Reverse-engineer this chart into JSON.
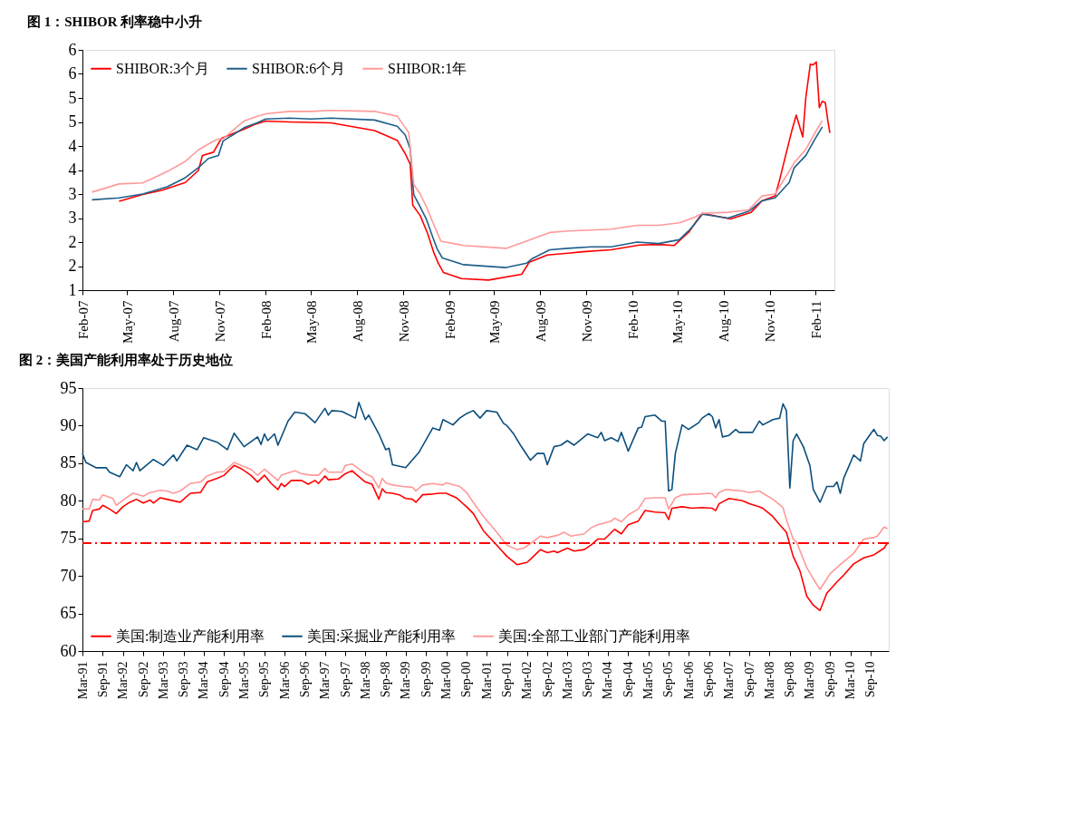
{
  "chart_data": [
    {
      "type": "line",
      "title": "图 1：SHIBOR 利率稳中小升",
      "legend": "top left",
      "grid": false,
      "xlim": [
        "2007-02-01",
        "2011-03-10"
      ],
      "xticks": [
        {
          "value": "2007-02-01",
          "label": "Feb-07"
        },
        {
          "value": "2007-05-01",
          "label": "May-07"
        },
        {
          "value": "2007-08-01",
          "label": "Aug-07"
        },
        {
          "value": "2007-11-01",
          "label": "Nov-07"
        },
        {
          "value": "2008-02-01",
          "label": "Feb-08"
        },
        {
          "value": "2008-05-01",
          "label": "May-08"
        },
        {
          "value": "2008-08-01",
          "label": "Aug-08"
        },
        {
          "value": "2008-11-01",
          "label": "Nov-08"
        },
        {
          "value": "2009-02-01",
          "label": "Feb-09"
        },
        {
          "value": "2009-05-01",
          "label": "May-09"
        },
        {
          "value": "2009-08-01",
          "label": "Aug-09"
        },
        {
          "value": "2009-11-01",
          "label": "Nov-09"
        },
        {
          "value": "2010-02-01",
          "label": "Feb-10"
        },
        {
          "value": "2010-05-01",
          "label": "May-10"
        },
        {
          "value": "2010-08-01",
          "label": "Aug-10"
        },
        {
          "value": "2010-11-01",
          "label": "Nov-10"
        },
        {
          "value": "2011-02-01",
          "label": "Feb-11"
        }
      ],
      "ylim": [
        1,
        6
      ],
      "yticks": [
        1,
        {
          "value": 1.5,
          "label": "2"
        },
        2,
        {
          "value": 2.5,
          "label": "3"
        },
        3,
        {
          "value": 3.5,
          "label": "4"
        },
        4,
        {
          "value": 4.5,
          "label": "5"
        },
        5,
        {
          "value": 5.5,
          "label": "6"
        },
        6
      ],
      "series": [
        {
          "name": "SHIBOR:3个月",
          "color": "#ff0000",
          "x": [
            "2007-04-15",
            "2007-06-01",
            "2007-07-10",
            "2007-08-25",
            "2007-09-20",
            "2007-09-28",
            "2007-10-20",
            "2007-11-05",
            "2007-12-20",
            "2008-01-10",
            "2008-02-01",
            "2008-03-20",
            "2008-05-01",
            "2008-06-10",
            "2008-09-05",
            "2008-10-20",
            "2008-11-05",
            "2008-11-15",
            "2008-11-20",
            "2008-12-05",
            "2008-12-20",
            "2009-01-01",
            "2009-01-10",
            "2009-01-20",
            "2009-02-25",
            "2009-04-20",
            "2009-06-25",
            "2009-07-10",
            "2009-08-15",
            "2009-09-25",
            "2009-10-25",
            "2009-12-20",
            "2010-02-15",
            "2010-03-25",
            "2010-04-25",
            "2010-05-25",
            "2010-06-05",
            "2010-06-20",
            "2010-08-15",
            "2010-09-25",
            "2010-10-17",
            "2010-11-12",
            "2010-11-21",
            "2010-12-03",
            "2010-12-15",
            "2010-12-24",
            "2011-01-06",
            "2011-01-12",
            "2011-01-21",
            "2011-01-27",
            "2011-02-02",
            "2011-02-08",
            "2011-02-14",
            "2011-02-20",
            "2011-02-25",
            "2011-03-01"
          ],
          "values": [
            2.85,
            2.99,
            3.08,
            3.24,
            3.49,
            3.8,
            3.87,
            4.16,
            4.35,
            4.45,
            4.52,
            4.5,
            4.49,
            4.48,
            4.32,
            4.12,
            3.84,
            3.62,
            2.77,
            2.55,
            2.17,
            1.78,
            1.56,
            1.37,
            1.24,
            1.21,
            1.33,
            1.58,
            1.73,
            1.77,
            1.8,
            1.84,
            1.94,
            1.95,
            1.93,
            2.22,
            2.39,
            2.6,
            2.48,
            2.62,
            2.86,
            2.96,
            3.3,
            3.81,
            4.31,
            4.64,
            4.19,
            5.0,
            5.7,
            5.69,
            5.75,
            4.8,
            4.93,
            4.9,
            4.52,
            4.27
          ]
        },
        {
          "name": "SHIBOR:6个月",
          "color": "#1f5f8b",
          "x": [
            "2007-02-20",
            "2007-04-15",
            "2007-06-01",
            "2007-07-20",
            "2007-08-25",
            "2007-09-20",
            "2007-10-10",
            "2007-10-30",
            "2007-11-08",
            "2007-12-20",
            "2008-01-15",
            "2008-02-01",
            "2008-03-20",
            "2008-05-01",
            "2008-06-10",
            "2008-09-05",
            "2008-10-20",
            "2008-11-05",
            "2008-11-15",
            "2008-11-22",
            "2008-12-05",
            "2008-12-17",
            "2008-12-30",
            "2009-01-08",
            "2009-01-18",
            "2009-03-01",
            "2009-05-25",
            "2009-07-05",
            "2009-07-15",
            "2009-08-20",
            "2009-09-25",
            "2009-11-10",
            "2009-12-20",
            "2010-02-10",
            "2010-03-25",
            "2010-05-05",
            "2010-05-25",
            "2010-06-05",
            "2010-06-20",
            "2010-08-10",
            "2010-09-20",
            "2010-10-17",
            "2010-11-12",
            "2010-12-10",
            "2010-12-20",
            "2011-01-12",
            "2011-01-29",
            "2011-02-14"
          ],
          "values": [
            2.88,
            2.92,
            3.0,
            3.15,
            3.34,
            3.55,
            3.74,
            3.8,
            4.1,
            4.38,
            4.48,
            4.56,
            4.58,
            4.56,
            4.58,
            4.54,
            4.41,
            4.23,
            3.94,
            2.99,
            2.73,
            2.48,
            2.1,
            1.85,
            1.67,
            1.53,
            1.47,
            1.56,
            1.65,
            1.84,
            1.87,
            1.9,
            1.9,
            2.0,
            1.97,
            2.05,
            2.25,
            2.38,
            2.58,
            2.5,
            2.64,
            2.86,
            2.92,
            3.24,
            3.55,
            3.8,
            4.12,
            4.4
          ]
        },
        {
          "name": "SHIBOR:1年",
          "color": "#ff9999",
          "x": [
            "2007-02-20",
            "2007-04-15",
            "2007-06-01",
            "2007-06-20",
            "2007-07-20",
            "2007-08-25",
            "2007-09-20",
            "2007-10-15",
            "2007-10-28",
            "2007-11-08",
            "2007-12-20",
            "2008-01-10",
            "2008-02-01",
            "2008-03-20",
            "2008-05-01",
            "2008-06-10",
            "2008-09-05",
            "2008-10-20",
            "2008-11-12",
            "2008-11-22",
            "2008-12-05",
            "2008-12-17",
            "2008-12-30",
            "2009-01-15",
            "2009-03-01",
            "2009-05-25",
            "2009-08-20",
            "2009-09-25",
            "2009-11-10",
            "2009-12-20",
            "2010-02-10",
            "2010-03-25",
            "2010-05-05",
            "2010-06-05",
            "2010-06-20",
            "2010-08-10",
            "2010-09-20",
            "2010-10-17",
            "2010-11-12",
            "2010-12-20",
            "2011-01-12",
            "2011-01-29",
            "2011-02-14"
          ],
          "values": [
            3.04,
            3.21,
            3.23,
            3.32,
            3.47,
            3.68,
            3.92,
            4.07,
            4.14,
            4.15,
            4.52,
            4.6,
            4.67,
            4.72,
            4.72,
            4.74,
            4.72,
            4.62,
            4.28,
            3.2,
            3.0,
            2.74,
            2.41,
            2.02,
            1.93,
            1.87,
            2.2,
            2.23,
            2.25,
            2.27,
            2.35,
            2.35,
            2.4,
            2.52,
            2.6,
            2.62,
            2.67,
            2.96,
            3.0,
            3.65,
            3.93,
            4.25,
            4.53
          ]
        }
      ]
    },
    {
      "type": "line",
      "title": "图 2：美国产能利用率处于历史地位",
      "legend": "bottom",
      "grid": false,
      "xlim": [
        "1991-03-01",
        "2011-02-12"
      ],
      "xticks": [
        {
          "value": "1991-03",
          "label": "Mar-91"
        },
        {
          "value": "1991-09",
          "label": "Sep-91"
        },
        {
          "value": "1992-03",
          "label": "Mar-92"
        },
        {
          "value": "1992-09",
          "label": "Sep-92"
        },
        {
          "value": "1993-03",
          "label": "Mar-93"
        },
        {
          "value": "1993-09",
          "label": "Sep-93"
        },
        {
          "value": "1994-03",
          "label": "Mar-94"
        },
        {
          "value": "1994-09",
          "label": "Sep-94"
        },
        {
          "value": "1995-03",
          "label": "Mar-95"
        },
        {
          "value": "1995-09",
          "label": "Sep-95"
        },
        {
          "value": "1996-03",
          "label": "Mar-96"
        },
        {
          "value": "1996-09",
          "label": "Sep-96"
        },
        {
          "value": "1997-03",
          "label": "Mar-97"
        },
        {
          "value": "1997-09",
          "label": "Sep-97"
        },
        {
          "value": "1998-03",
          "label": "Mar-98"
        },
        {
          "value": "1998-09",
          "label": "Sep-98"
        },
        {
          "value": "1999-03",
          "label": "Mar-99"
        },
        {
          "value": "1999-09",
          "label": "Sep-99"
        },
        {
          "value": "2000-03",
          "label": "Mar-00"
        },
        {
          "value": "2000-09",
          "label": "Sep-00"
        },
        {
          "value": "2001-03",
          "label": "Mar-01"
        },
        {
          "value": "2001-09",
          "label": "Sep-01"
        },
        {
          "value": "2002-03",
          "label": "Mar-02"
        },
        {
          "value": "2002-09",
          "label": "Sep-02"
        },
        {
          "value": "2003-03",
          "label": "Mar-03"
        },
        {
          "value": "2003-09",
          "label": "Sep-03"
        },
        {
          "value": "2004-03",
          "label": "Mar-04"
        },
        {
          "value": "2004-09",
          "label": "Sep-04"
        },
        {
          "value": "2005-03",
          "label": "Mar-05"
        },
        {
          "value": "2005-09",
          "label": "Sep-05"
        },
        {
          "value": "2006-03",
          "label": "Mar-06"
        },
        {
          "value": "2006-09",
          "label": "Sep-06"
        },
        {
          "value": "2007-03",
          "label": "Mar-07"
        },
        {
          "value": "2007-09",
          "label": "Sep-07"
        },
        {
          "value": "2008-03",
          "label": "Mar-08"
        },
        {
          "value": "2008-09",
          "label": "Sep-08"
        },
        {
          "value": "2009-03",
          "label": "Mar-09"
        },
        {
          "value": "2009-09",
          "label": "Sep-09"
        },
        {
          "value": "2010-03",
          "label": "Mar-10"
        },
        {
          "value": "2010-09",
          "label": "Sep-10"
        }
      ],
      "ylim": [
        60,
        95
      ],
      "yticks": [
        60,
        65,
        70,
        75,
        80,
        85,
        90,
        95
      ],
      "ref_lines": [
        {
          "axis": "y",
          "value": 74.4,
          "color": "#ff0000",
          "line_style": "dashed"
        }
      ],
      "series": [
        {
          "name": "美国:制造业产能利用率",
          "color": "#ff0000",
          "x": [
            "1991-03",
            "1991-05",
            "1991-06",
            "1991-08",
            "1991-09",
            "1991-11",
            "1992-01",
            "1992-03",
            "1992-05",
            "1992-07",
            "1992-09",
            "1992-11",
            "1992-12",
            "1993-02",
            "1993-04",
            "1993-07",
            "1993-08",
            "1993-11",
            "1994-02",
            "1994-04",
            "1994-07",
            "1994-09",
            "1994-12",
            "1995-02",
            "1995-05",
            "1995-07",
            "1995-09",
            "1995-11",
            "1996-01",
            "1996-02",
            "1996-03",
            "1996-05",
            "1996-08",
            "1996-10",
            "1996-12",
            "1997-01",
            "1997-03",
            "1997-04",
            "1997-07",
            "1997-09",
            "1997-11",
            "1997-12",
            "1998-03",
            "1998-05",
            "1998-07",
            "1998-08",
            "1998-09",
            "1998-11",
            "1999-01",
            "1999-03",
            "1999-05",
            "1999-06",
            "1999-08",
            "1999-11",
            "2000-01",
            "2000-03",
            "2000-06",
            "2000-09",
            "2000-11",
            "2001-02",
            "2001-06",
            "2001-09",
            "2001-12",
            "2002-03",
            "2002-04",
            "2002-07",
            "2002-09",
            "2002-11",
            "2002-12",
            "2003-03",
            "2003-05",
            "2003-08",
            "2003-10",
            "2003-12",
            "2004-02",
            "2004-05",
            "2004-07",
            "2004-09",
            "2004-12",
            "2005-02",
            "2005-05",
            "2005-08",
            "2005-09",
            "2005-10",
            "2006-01",
            "2006-04",
            "2006-07",
            "2006-10",
            "2006-11",
            "2006-12",
            "2007-03",
            "2007-07",
            "2007-09",
            "2007-12",
            "2008-01",
            "2008-04",
            "2008-06",
            "2008-08",
            "2008-10",
            "2008-12",
            "2009-02",
            "2009-04",
            "2009-06",
            "2009-08",
            "2009-11",
            "2010-01",
            "2010-04",
            "2010-07",
            "2010-10",
            "2011-01",
            "2011-02"
          ],
          "values": [
            77.2,
            77.3,
            78.7,
            78.9,
            79.4,
            78.9,
            78.3,
            79.2,
            79.8,
            80.2,
            79.7,
            80.1,
            79.7,
            80.4,
            80.2,
            79.9,
            79.8,
            81.0,
            81.1,
            82.5,
            83.0,
            83.4,
            84.7,
            84.3,
            83.4,
            82.5,
            83.4,
            82.3,
            81.5,
            82.3,
            81.9,
            82.7,
            82.7,
            82.2,
            82.7,
            82.3,
            83.3,
            82.8,
            82.9,
            83.6,
            84.0,
            83.6,
            82.5,
            82.2,
            80.2,
            81.6,
            81.1,
            81.0,
            80.8,
            80.3,
            80.2,
            79.8,
            80.8,
            80.9,
            81.0,
            81.0,
            80.4,
            79.2,
            78.3,
            76.0,
            74.1,
            72.6,
            71.5,
            71.8,
            72.2,
            73.5,
            73.1,
            73.3,
            73.1,
            73.7,
            73.3,
            73.5,
            74.1,
            74.9,
            74.9,
            76.2,
            75.6,
            76.8,
            77.3,
            78.7,
            78.5,
            78.4,
            77.5,
            79.0,
            79.2,
            79.0,
            79.1,
            79.0,
            78.7,
            79.6,
            80.3,
            80.0,
            79.6,
            79.2,
            79.0,
            77.9,
            76.8,
            75.8,
            72.6,
            70.7,
            67.3,
            66.1,
            65.4,
            67.7,
            69.2,
            70.1,
            71.6,
            72.4,
            72.8,
            73.7,
            74.4
          ]
        },
        {
          "name": "美国:采掘业产能利用率",
          "color": "#0b4f7c",
          "x": [
            "1991-03",
            "1991-04",
            "1991-07",
            "1991-10",
            "1991-11",
            "1992-02",
            "1992-04",
            "1992-06",
            "1992-07",
            "1992-08",
            "1992-12",
            "1993-03",
            "1993-06",
            "1993-07",
            "1993-10",
            "1994-01",
            "1994-03",
            "1994-07",
            "1994-10",
            "1994-12",
            "1995-03",
            "1995-07",
            "1995-08",
            "1995-09",
            "1995-10",
            "1995-12",
            "1996-01",
            "1996-04",
            "1996-06",
            "1996-09",
            "1996-12",
            "1997-03",
            "1997-04",
            "1997-05",
            "1997-08",
            "1997-12",
            "1998-01",
            "1998-03",
            "1998-04",
            "1998-07",
            "1998-09",
            "1998-10",
            "1998-11",
            "1999-03",
            "1999-07",
            "1999-11",
            "2000-01",
            "2000-02",
            "2000-05",
            "2000-07",
            "2000-09",
            "2000-11",
            "2001-01",
            "2001-03",
            "2001-06",
            "2001-08",
            "2001-09",
            "2001-11",
            "2002-01",
            "2002-04",
            "2002-06",
            "2002-08",
            "2002-09",
            "2002-11",
            "2003-01",
            "2003-03",
            "2003-05",
            "2003-09",
            "2003-12",
            "2004-01",
            "2004-02",
            "2004-04",
            "2004-06",
            "2004-07",
            "2004-09",
            "2004-12",
            "2005-01",
            "2005-02",
            "2005-05",
            "2005-07",
            "2005-08",
            "2005-09",
            "2005-10",
            "2005-11",
            "2006-01",
            "2006-03",
            "2006-06",
            "2006-07",
            "2006-09",
            "2006-10",
            "2006-11",
            "2006-12",
            "2007-01",
            "2007-03",
            "2007-05",
            "2007-06",
            "2007-09",
            "2007-10",
            "2007-12",
            "2008-01",
            "2008-04",
            "2008-06",
            "2008-07",
            "2008-08",
            "2008-09",
            "2008-10",
            "2008-11",
            "2009-01",
            "2009-03",
            "2009-04",
            "2009-06",
            "2009-08",
            "2009-10",
            "2009-11",
            "2009-12",
            "2010-01",
            "2010-04",
            "2010-06",
            "2010-07",
            "2010-09",
            "2010-10",
            "2010-11",
            "2010-12",
            "2011-01",
            "2011-02"
          ],
          "values": [
            86.3,
            85.1,
            84.4,
            84.4,
            83.8,
            83.2,
            84.8,
            84.0,
            85.1,
            84.0,
            85.5,
            84.7,
            86.1,
            85.3,
            87.4,
            86.8,
            88.4,
            87.8,
            86.8,
            89.0,
            87.2,
            88.5,
            87.5,
            88.9,
            88.0,
            88.9,
            87.4,
            90.6,
            91.8,
            91.6,
            90.4,
            92.3,
            91.4,
            92.0,
            91.9,
            91.0,
            93.1,
            90.8,
            91.4,
            88.9,
            86.8,
            87.0,
            84.8,
            84.4,
            86.5,
            89.7,
            89.4,
            90.8,
            90.1,
            91.0,
            91.6,
            92.0,
            91.0,
            92.0,
            91.8,
            90.3,
            90.0,
            88.9,
            87.4,
            85.4,
            86.3,
            86.3,
            84.8,
            87.2,
            87.4,
            88.0,
            87.4,
            88.9,
            88.4,
            89.1,
            88.0,
            88.4,
            87.9,
            89.1,
            86.6,
            89.7,
            89.8,
            91.2,
            91.4,
            90.6,
            90.6,
            81.3,
            81.5,
            86.3,
            90.1,
            89.5,
            90.4,
            91.0,
            91.6,
            91.2,
            89.7,
            90.8,
            88.5,
            88.7,
            89.5,
            89.1,
            89.1,
            89.1,
            90.6,
            90.1,
            90.8,
            91.0,
            92.9,
            92.0,
            81.7,
            88.0,
            88.9,
            87.2,
            84.7,
            81.5,
            79.8,
            81.9,
            81.9,
            82.5,
            81.0,
            83.0,
            86.1,
            85.3,
            87.6,
            88.9,
            89.5,
            88.7,
            88.6,
            88.0,
            88.5
          ]
        },
        {
          "name": "美国:全部工业部门产能利用率",
          "color": "#ff9999",
          "x": [
            "1991-03",
            "1991-05",
            "1991-06",
            "1991-08",
            "1991-09",
            "1991-12",
            "1992-01",
            "1992-04",
            "1992-06",
            "1992-09",
            "1992-11",
            "1993-02",
            "1993-04",
            "1993-06",
            "1993-08",
            "1993-11",
            "1994-02",
            "1994-04",
            "1994-07",
            "1994-09",
            "1994-12",
            "1995-02",
            "1995-05",
            "1995-07",
            "1995-09",
            "1996-01",
            "1996-02",
            "1996-06",
            "1996-08",
            "1996-11",
            "1997-01",
            "1997-03",
            "1997-04",
            "1997-08",
            "1997-09",
            "1997-11",
            "1998-03",
            "1998-05",
            "1998-07",
            "1998-08",
            "1998-09",
            "1998-11",
            "1999-02",
            "1999-05",
            "1999-06",
            "1999-08",
            "1999-11",
            "2000-02",
            "2000-03",
            "2000-07",
            "2000-09",
            "2000-11",
            "2001-02",
            "2001-06",
            "2001-09",
            "2001-12",
            "2002-02",
            "2002-04",
            "2002-07",
            "2002-09",
            "2002-12",
            "2003-02",
            "2003-04",
            "2003-08",
            "2003-10",
            "2003-12",
            "2004-04",
            "2004-05",
            "2004-07",
            "2004-09",
            "2004-12",
            "2005-02",
            "2005-05",
            "2005-08",
            "2005-09",
            "2005-11",
            "2006-01",
            "2006-06",
            "2006-09",
            "2006-10",
            "2006-11",
            "2006-12",
            "2007-02",
            "2007-07",
            "2007-09",
            "2007-12",
            "2008-01",
            "2008-04",
            "2008-07",
            "2008-08",
            "2008-10",
            "2008-11",
            "2009-02",
            "2009-04",
            "2009-06",
            "2009-09",
            "2009-12",
            "2010-04",
            "2010-07",
            "2010-10",
            "2010-11",
            "2011-01",
            "2011-02"
          ],
          "values": [
            78.9,
            78.9,
            80.2,
            80.1,
            80.8,
            80.3,
            79.4,
            80.4,
            81.0,
            80.6,
            81.1,
            81.4,
            81.3,
            81.0,
            81.3,
            82.3,
            82.5,
            83.3,
            83.8,
            83.9,
            85.1,
            84.7,
            84.2,
            83.4,
            84.2,
            82.7,
            83.4,
            84.0,
            83.6,
            83.4,
            83.4,
            84.3,
            83.8,
            83.8,
            84.7,
            84.9,
            83.6,
            83.2,
            81.7,
            83.0,
            82.4,
            82.1,
            81.9,
            81.8,
            81.3,
            82.1,
            82.3,
            82.1,
            82.4,
            81.9,
            81.1,
            79.8,
            77.9,
            75.8,
            74.1,
            73.5,
            73.7,
            74.3,
            75.3,
            75.1,
            75.4,
            75.8,
            75.3,
            75.6,
            76.4,
            76.8,
            77.3,
            77.7,
            77.2,
            78.1,
            78.9,
            80.3,
            80.4,
            80.4,
            78.9,
            80.4,
            80.8,
            80.9,
            81.0,
            80.9,
            80.4,
            81.1,
            81.5,
            81.3,
            81.1,
            81.3,
            81.0,
            80.2,
            79.1,
            77.5,
            74.9,
            74.5,
            71.1,
            69.6,
            68.2,
            70.3,
            71.5,
            73.0,
            74.9,
            75.1,
            75.3,
            76.5,
            76.3
          ]
        }
      ]
    }
  ]
}
